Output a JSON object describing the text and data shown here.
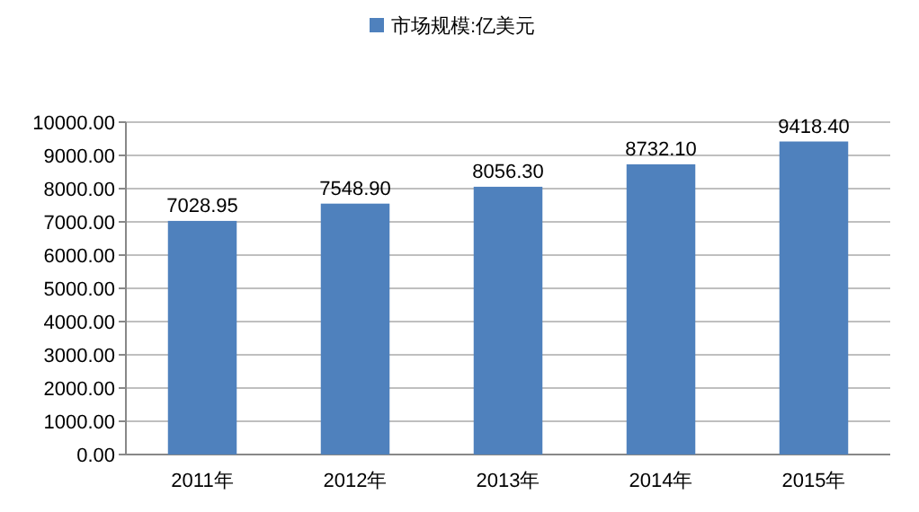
{
  "chart_data": {
    "type": "bar",
    "categories": [
      "2011年",
      "2012年",
      "2013年",
      "2014年",
      "2015年"
    ],
    "series": [
      {
        "name": "市场规模:亿美元",
        "color": "#4f81bd",
        "values": [
          7028.95,
          7548.9,
          8056.3,
          8732.1,
          9418.4
        ],
        "value_labels": [
          "7028.95",
          "7548.90",
          "8056.30",
          "8732.10",
          "9418.40"
        ]
      }
    ],
    "ylim": [
      0,
      10000
    ],
    "yticks": [
      {
        "value": 0,
        "label": "0.00"
      },
      {
        "value": 1000,
        "label": "1000.00"
      },
      {
        "value": 2000,
        "label": "2000.00"
      },
      {
        "value": 3000,
        "label": "3000.00"
      },
      {
        "value": 4000,
        "label": "4000.00"
      },
      {
        "value": 5000,
        "label": "5000.00"
      },
      {
        "value": 6000,
        "label": "6000.00"
      },
      {
        "value": 7000,
        "label": "7000.00"
      },
      {
        "value": 8000,
        "label": "8000.00"
      },
      {
        "value": 9000,
        "label": "9000.00"
      },
      {
        "value": 10000,
        "label": "10000.00"
      }
    ],
    "grid": "y",
    "legend": "top"
  }
}
